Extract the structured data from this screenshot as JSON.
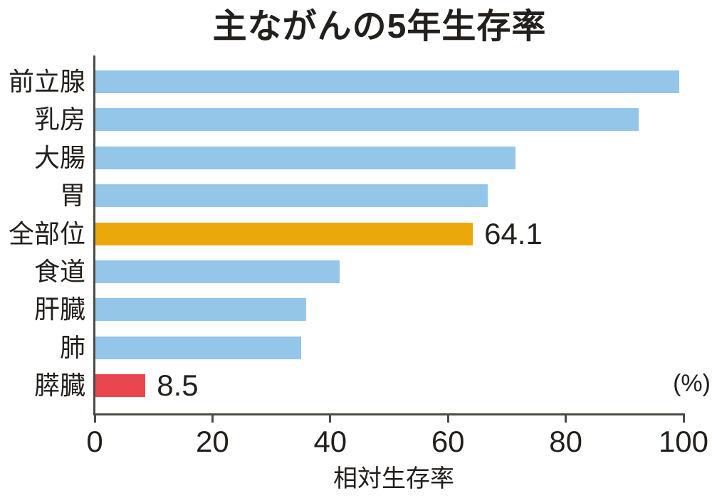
{
  "chart_data": {
    "type": "bar",
    "orientation": "horizontal",
    "title": "主ながんの5年生存率",
    "xlabel": "相対生存率",
    "unit_label": "(%)",
    "xlim": [
      0,
      100
    ],
    "x_ticks": [
      "0",
      "20",
      "40",
      "60",
      "80",
      "100"
    ],
    "categories": [
      "前立腺",
      "乳房",
      "大腸",
      "胃",
      "全部位",
      "食道",
      "肝臓",
      "肺",
      "膵臓"
    ],
    "values": [
      99.1,
      92.3,
      71.4,
      66.6,
      64.1,
      41.5,
      35.8,
      34.9,
      8.5
    ],
    "value_labels_shown": [
      "",
      "",
      "",
      "",
      "64.1",
      "",
      "",
      "",
      "8.5"
    ],
    "bar_colors": [
      "#93c6e9",
      "#93c6e9",
      "#93c6e9",
      "#93c6e9",
      "#eba80a",
      "#93c6e9",
      "#93c6e9",
      "#93c6e9",
      "#e9464f"
    ],
    "colors": {
      "bar_default": "#93c6e9",
      "bar_highlight_all_sites": "#eba80a",
      "bar_highlight_pancreas": "#e9464f",
      "text": "#221f1c",
      "axis": "#4a4a46",
      "background": "#ffffff"
    },
    "legend": "none",
    "grid": "off"
  }
}
